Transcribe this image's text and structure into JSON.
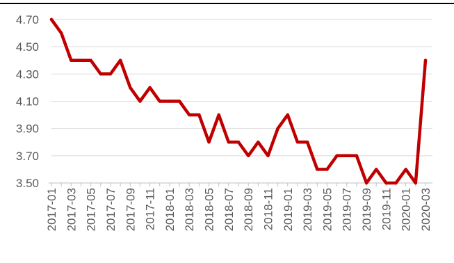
{
  "chart_data": {
    "type": "line",
    "title": "",
    "xlabel": "",
    "ylabel": "",
    "ylim": [
      3.5,
      4.7
    ],
    "yticks": [
      "3.50",
      "3.70",
      "3.90",
      "4.10",
      "4.30",
      "4.50",
      "4.70"
    ],
    "x_tick_labels": [
      "2017-01",
      "2017-03",
      "2017-05",
      "2017-07",
      "2017-09",
      "2017-11",
      "2018-01",
      "2018-03",
      "2018-05",
      "2018-07",
      "2018-09",
      "2018-11",
      "2019-01",
      "2019-03",
      "2019-05",
      "2019-07",
      "2019-09",
      "2019-11",
      "2020-01",
      "2020-03"
    ],
    "grid": "horizontal",
    "legend": "none",
    "series_color": "#c00000",
    "x": [
      "2017-01",
      "2017-02",
      "2017-03",
      "2017-04",
      "2017-05",
      "2017-06",
      "2017-07",
      "2017-08",
      "2017-09",
      "2017-10",
      "2017-11",
      "2017-12",
      "2018-01",
      "2018-02",
      "2018-03",
      "2018-04",
      "2018-05",
      "2018-06",
      "2018-07",
      "2018-08",
      "2018-09",
      "2018-10",
      "2018-11",
      "2018-12",
      "2019-01",
      "2019-02",
      "2019-03",
      "2019-04",
      "2019-05",
      "2019-06",
      "2019-07",
      "2019-08",
      "2019-09",
      "2019-10",
      "2019-11",
      "2019-12",
      "2020-01",
      "2020-02",
      "2020-03"
    ],
    "series": [
      {
        "values": [
          4.7,
          4.6,
          4.4,
          4.4,
          4.4,
          4.3,
          4.3,
          4.4,
          4.2,
          4.1,
          4.2,
          4.1,
          4.1,
          4.1,
          4.0,
          4.0,
          3.8,
          4.0,
          3.8,
          3.8,
          3.7,
          3.8,
          3.7,
          3.9,
          4.0,
          3.8,
          3.8,
          3.6,
          3.6,
          3.7,
          3.7,
          3.7,
          3.5,
          3.6,
          3.5,
          3.5,
          3.6,
          3.5,
          4.4
        ]
      }
    ]
  }
}
